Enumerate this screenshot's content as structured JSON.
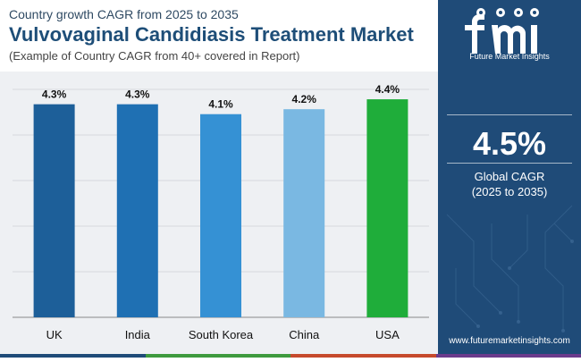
{
  "header": {
    "subtitle": "Country growth CAGR from 2025 to 2035",
    "title": "Vulvovaginal Candidiasis Treatment Market",
    "note": "(Example of Country CAGR from 40+ covered in Report)"
  },
  "chart_data": {
    "type": "bar",
    "categories": [
      "UK",
      "India",
      "South Korea",
      "China",
      "USA"
    ],
    "values": [
      4.3,
      4.3,
      4.1,
      4.2,
      4.4
    ],
    "value_labels": [
      "4.3%",
      "4.3%",
      "4.1%",
      "4.2%",
      "4.4%"
    ],
    "colors": [
      "#1d5f99",
      "#1f70b3",
      "#3591d4",
      "#7ab8e2",
      "#1fad3a"
    ],
    "ylim": [
      0,
      4.6
    ],
    "grid": true,
    "title": "",
    "xlabel": "",
    "ylabel": ""
  },
  "sidebar": {
    "logo_text": "Future Market Insights",
    "kpi_value": "4.5%",
    "kpi_label_line1": "Global CAGR",
    "kpi_label_line2": "(2025 to 2035)",
    "website": "www.futuremarketinsights.com"
  },
  "colors": {
    "title": "#1e4e78",
    "sidebar_bg": "#1f4b78",
    "chart_bg": "#eef0f3",
    "strip": [
      "#1f4b78",
      "#3e9a3e",
      "#c64a2c",
      "#6b3b8c"
    ]
  }
}
